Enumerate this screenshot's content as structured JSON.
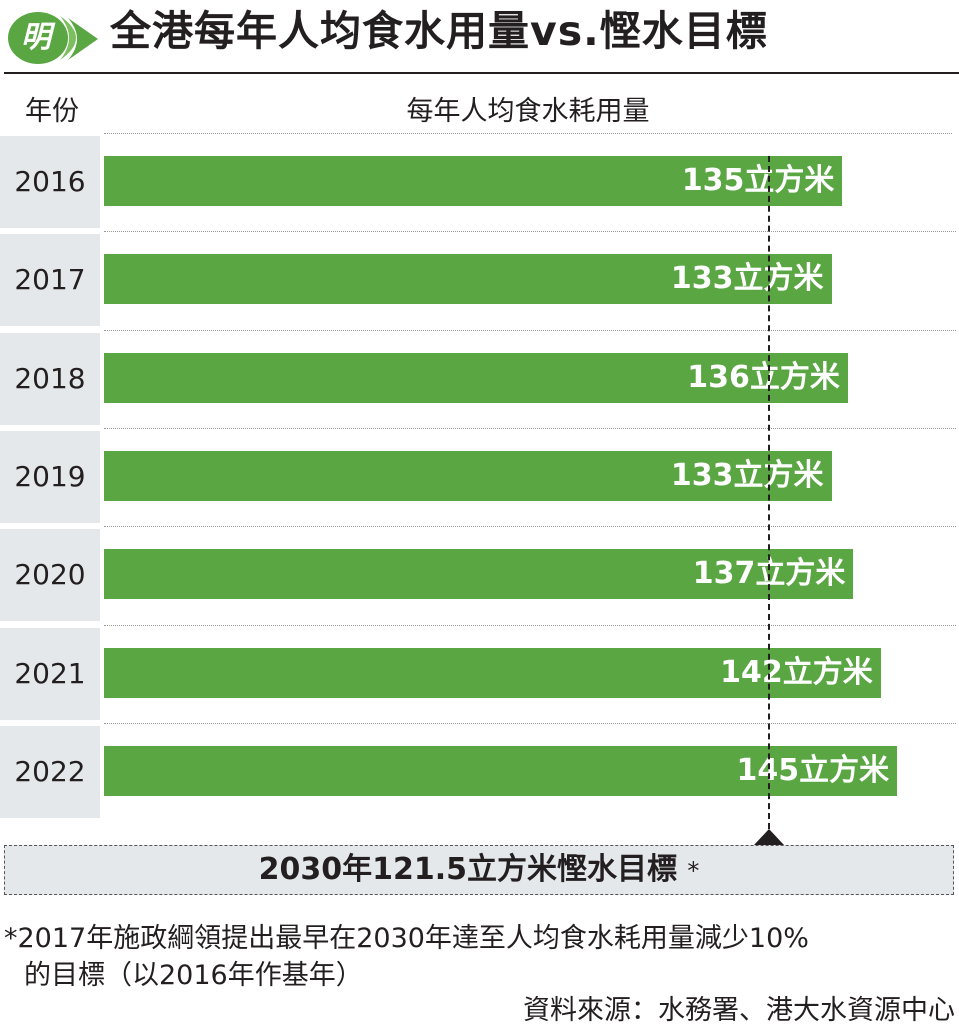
{
  "title": "全港每年人均食水用量vs.慳水目標",
  "logo_text": "明",
  "column_headers": {
    "year": "年份",
    "value": "每年人均食水耗用量"
  },
  "unit": "立方米",
  "colors": {
    "bar": "#5aa643",
    "year_cell": "#e5e8ea",
    "logo": "#5aa643",
    "text": "#231f20"
  },
  "chart_data": {
    "type": "bar",
    "orientation": "horizontal",
    "title": "全港每年人均食水用量vs.慳水目標",
    "xlabel": "每年人均食水耗用量",
    "ylabel": "年份",
    "categories": [
      "2016",
      "2017",
      "2018",
      "2019",
      "2020",
      "2021",
      "2022"
    ],
    "values": [
      135,
      133,
      136,
      133,
      137,
      142,
      145
    ],
    "data_labels": [
      "135立方米",
      "133立方米",
      "136立方米",
      "133立方米",
      "137立方米",
      "142立方米",
      "145立方米"
    ],
    "target": {
      "value": 121.5,
      "label": "2030年121.5立方米慳水目標",
      "marker": "*"
    },
    "grid": false,
    "legend": "none"
  },
  "footnote": {
    "line1": "*2017年施政綱領提出最早在2030年達至人均食水耗用量減少10%",
    "line2": "的目標（以2016年作基年）"
  },
  "source": "資料來源：水務署、港大水資源中心"
}
